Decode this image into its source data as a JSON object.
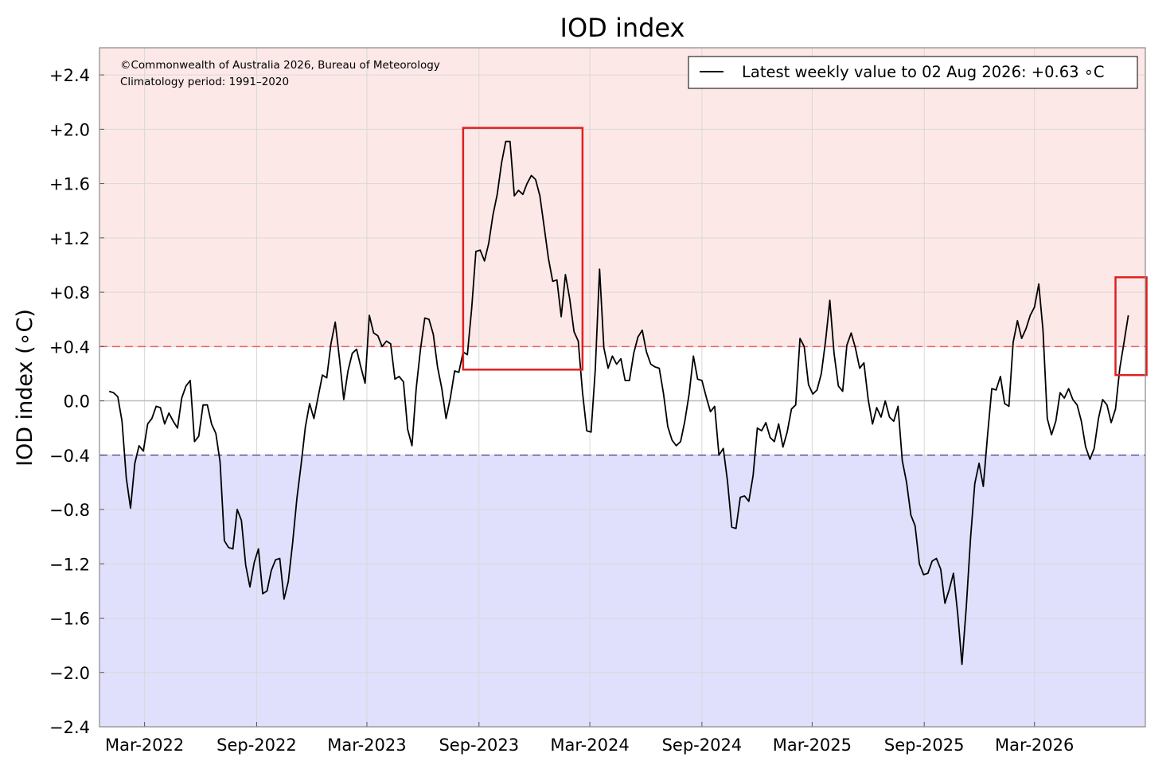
{
  "colors": {
    "positive_zone": "#fde8e8",
    "negative_zone": "#e0e0fd",
    "positive_threshold": "#f06060",
    "negative_threshold": "#5a5a9a",
    "line": "#000000",
    "highlight": "#e02020",
    "grid": "#d8d8d8",
    "zero_line": "#bbbbbb"
  },
  "chart_data": {
    "type": "line",
    "title": "IOD index",
    "ylabel": "IOD index (∘C)",
    "ylim": [
      -2.4,
      2.6
    ],
    "xlim": [
      "2021-12-17",
      "2026-08-30"
    ],
    "grid": true,
    "legend_position": "top-right",
    "copyright": "©Commonwealth of Australia 2026, Bureau of Meteorology",
    "climatology": "Climatology period: 1991–2020",
    "legend_label": "Latest weekly value to 02 Aug 2026: +0.63 ∘C",
    "thresholds": {
      "positive": 0.4,
      "negative": -0.4
    },
    "yticks": [
      {
        "value": 2.4,
        "label": "+2.4"
      },
      {
        "value": 2.0,
        "label": "+2.0"
      },
      {
        "value": 1.6,
        "label": "+1.6"
      },
      {
        "value": 1.2,
        "label": "+1.2"
      },
      {
        "value": 0.8,
        "label": "+0.8"
      },
      {
        "value": 0.4,
        "label": "+0.4"
      },
      {
        "value": 0.0,
        "label": "0.0"
      },
      {
        "value": -0.4,
        "label": "−0.4"
      },
      {
        "value": -0.8,
        "label": "−0.8"
      },
      {
        "value": -1.2,
        "label": "−1.2"
      },
      {
        "value": -1.6,
        "label": "−1.6"
      },
      {
        "value": -2.0,
        "label": "−2.0"
      },
      {
        "value": -2.4,
        "label": "−2.4"
      }
    ],
    "xticks": [
      {
        "date": "2022-03-01",
        "label": "Mar-2022"
      },
      {
        "date": "2022-09-01",
        "label": "Sep-2022"
      },
      {
        "date": "2023-03-01",
        "label": "Mar-2023"
      },
      {
        "date": "2023-09-01",
        "label": "Sep-2023"
      },
      {
        "date": "2024-03-01",
        "label": "Mar-2024"
      },
      {
        "date": "2024-09-01",
        "label": "Sep-2024"
      },
      {
        "date": "2025-03-01",
        "label": "Mar-2025"
      },
      {
        "date": "2025-09-01",
        "label": "Sep-2025"
      },
      {
        "date": "2026-03-01",
        "label": "Mar-2026"
      }
    ],
    "series": [
      {
        "points": [
          [
            "2022-01-02",
            0.07
          ],
          [
            "2022-01-09",
            0.06
          ],
          [
            "2022-01-16",
            0.03
          ],
          [
            "2022-01-23",
            -0.15
          ],
          [
            "2022-01-30",
            -0.57
          ],
          [
            "2022-02-06",
            -0.79
          ],
          [
            "2022-02-13",
            -0.46
          ],
          [
            "2022-02-20",
            -0.33
          ],
          [
            "2022-02-27",
            -0.37
          ],
          [
            "2022-03-06",
            -0.17
          ],
          [
            "2022-03-13",
            -0.13
          ],
          [
            "2022-03-20",
            -0.04
          ],
          [
            "2022-03-27",
            -0.05
          ],
          [
            "2022-04-03",
            -0.17
          ],
          [
            "2022-04-10",
            -0.09
          ],
          [
            "2022-04-17",
            -0.15
          ],
          [
            "2022-04-24",
            -0.2
          ],
          [
            "2022-05-01",
            0.02
          ],
          [
            "2022-05-08",
            0.11
          ],
          [
            "2022-05-15",
            0.15
          ],
          [
            "2022-05-22",
            -0.3
          ],
          [
            "2022-05-29",
            -0.26
          ],
          [
            "2022-06-05",
            -0.03
          ],
          [
            "2022-06-12",
            -0.03
          ],
          [
            "2022-06-19",
            -0.17
          ],
          [
            "2022-06-26",
            -0.24
          ],
          [
            "2022-07-03",
            -0.45
          ],
          [
            "2022-07-10",
            -1.03
          ],
          [
            "2022-07-17",
            -1.08
          ],
          [
            "2022-07-24",
            -1.09
          ],
          [
            "2022-07-31",
            -0.8
          ],
          [
            "2022-08-07",
            -0.88
          ],
          [
            "2022-08-14",
            -1.21
          ],
          [
            "2022-08-21",
            -1.37
          ],
          [
            "2022-08-28",
            -1.19
          ],
          [
            "2022-09-04",
            -1.09
          ],
          [
            "2022-09-11",
            -1.42
          ],
          [
            "2022-09-18",
            -1.4
          ],
          [
            "2022-09-25",
            -1.25
          ],
          [
            "2022-10-02",
            -1.17
          ],
          [
            "2022-10-09",
            -1.16
          ],
          [
            "2022-10-16",
            -1.46
          ],
          [
            "2022-10-23",
            -1.33
          ],
          [
            "2022-10-30",
            -1.05
          ],
          [
            "2022-11-06",
            -0.72
          ],
          [
            "2022-11-13",
            -0.47
          ],
          [
            "2022-11-20",
            -0.19
          ],
          [
            "2022-11-27",
            -0.02
          ],
          [
            "2022-12-04",
            -0.13
          ],
          [
            "2022-12-11",
            0.03
          ],
          [
            "2022-12-18",
            0.19
          ],
          [
            "2022-12-25",
            0.17
          ],
          [
            "2023-01-01",
            0.42
          ],
          [
            "2023-01-08",
            0.58
          ],
          [
            "2023-01-15",
            0.31
          ],
          [
            "2023-01-22",
            0.01
          ],
          [
            "2023-01-29",
            0.22
          ],
          [
            "2023-02-05",
            0.35
          ],
          [
            "2023-02-12",
            0.38
          ],
          [
            "2023-02-19",
            0.25
          ],
          [
            "2023-02-26",
            0.13
          ],
          [
            "2023-03-05",
            0.63
          ],
          [
            "2023-03-12",
            0.5
          ],
          [
            "2023-03-19",
            0.48
          ],
          [
            "2023-03-26",
            0.4
          ],
          [
            "2023-04-02",
            0.44
          ],
          [
            "2023-04-09",
            0.42
          ],
          [
            "2023-04-16",
            0.16
          ],
          [
            "2023-04-23",
            0.18
          ],
          [
            "2023-04-30",
            0.14
          ],
          [
            "2023-05-07",
            -0.21
          ],
          [
            "2023-05-14",
            -0.33
          ],
          [
            "2023-05-21",
            0.09
          ],
          [
            "2023-05-28",
            0.38
          ],
          [
            "2023-06-04",
            0.61
          ],
          [
            "2023-06-11",
            0.6
          ],
          [
            "2023-06-18",
            0.49
          ],
          [
            "2023-06-25",
            0.25
          ],
          [
            "2023-07-02",
            0.09
          ],
          [
            "2023-07-09",
            -0.13
          ],
          [
            "2023-07-16",
            0.02
          ],
          [
            "2023-07-23",
            0.22
          ],
          [
            "2023-07-30",
            0.21
          ],
          [
            "2023-08-06",
            0.36
          ],
          [
            "2023-08-13",
            0.34
          ],
          [
            "2023-08-20",
            0.68
          ],
          [
            "2023-08-27",
            1.1
          ],
          [
            "2023-09-03",
            1.11
          ],
          [
            "2023-09-10",
            1.03
          ],
          [
            "2023-09-17",
            1.16
          ],
          [
            "2023-09-24",
            1.37
          ],
          [
            "2023-10-01",
            1.52
          ],
          [
            "2023-10-08",
            1.75
          ],
          [
            "2023-10-15",
            1.91
          ],
          [
            "2023-10-22",
            1.91
          ],
          [
            "2023-10-29",
            1.51
          ],
          [
            "2023-11-05",
            1.55
          ],
          [
            "2023-11-12",
            1.52
          ],
          [
            "2023-11-19",
            1.6
          ],
          [
            "2023-11-26",
            1.66
          ],
          [
            "2023-12-03",
            1.63
          ],
          [
            "2023-12-10",
            1.51
          ],
          [
            "2023-12-17",
            1.28
          ],
          [
            "2023-12-24",
            1.05
          ],
          [
            "2023-12-31",
            0.88
          ],
          [
            "2024-01-07",
            0.89
          ],
          [
            "2024-01-14",
            0.62
          ],
          [
            "2024-01-21",
            0.93
          ],
          [
            "2024-01-28",
            0.75
          ],
          [
            "2024-02-04",
            0.51
          ],
          [
            "2024-02-11",
            0.44
          ],
          [
            "2024-02-18",
            0.06
          ],
          [
            "2024-02-25",
            -0.22
          ],
          [
            "2024-03-03",
            -0.23
          ],
          [
            "2024-03-10",
            0.23
          ],
          [
            "2024-03-17",
            0.97
          ],
          [
            "2024-03-24",
            0.39
          ],
          [
            "2024-03-31",
            0.24
          ],
          [
            "2024-04-07",
            0.33
          ],
          [
            "2024-04-14",
            0.27
          ],
          [
            "2024-04-21",
            0.31
          ],
          [
            "2024-04-28",
            0.15
          ],
          [
            "2024-05-05",
            0.15
          ],
          [
            "2024-05-12",
            0.35
          ],
          [
            "2024-05-19",
            0.47
          ],
          [
            "2024-05-26",
            0.52
          ],
          [
            "2024-06-02",
            0.36
          ],
          [
            "2024-06-09",
            0.27
          ],
          [
            "2024-06-16",
            0.25
          ],
          [
            "2024-06-23",
            0.24
          ],
          [
            "2024-06-30",
            0.05
          ],
          [
            "2024-07-07",
            -0.19
          ],
          [
            "2024-07-14",
            -0.29
          ],
          [
            "2024-07-21",
            -0.33
          ],
          [
            "2024-07-28",
            -0.3
          ],
          [
            "2024-08-04",
            -0.15
          ],
          [
            "2024-08-11",
            0.05
          ],
          [
            "2024-08-18",
            0.33
          ],
          [
            "2024-08-25",
            0.16
          ],
          [
            "2024-09-01",
            0.15
          ],
          [
            "2024-09-08",
            0.03
          ],
          [
            "2024-09-15",
            -0.08
          ],
          [
            "2024-09-22",
            -0.04
          ],
          [
            "2024-09-29",
            -0.4
          ],
          [
            "2024-10-06",
            -0.35
          ],
          [
            "2024-10-13",
            -0.59
          ],
          [
            "2024-10-20",
            -0.93
          ],
          [
            "2024-10-27",
            -0.94
          ],
          [
            "2024-11-03",
            -0.71
          ],
          [
            "2024-11-10",
            -0.7
          ],
          [
            "2024-11-17",
            -0.74
          ],
          [
            "2024-11-24",
            -0.55
          ],
          [
            "2024-12-01",
            -0.2
          ],
          [
            "2024-12-08",
            -0.22
          ],
          [
            "2024-12-15",
            -0.16
          ],
          [
            "2024-12-22",
            -0.27
          ],
          [
            "2024-12-29",
            -0.3
          ],
          [
            "2025-01-05",
            -0.17
          ],
          [
            "2025-01-12",
            -0.34
          ],
          [
            "2025-01-19",
            -0.23
          ],
          [
            "2025-01-26",
            -0.06
          ],
          [
            "2025-02-02",
            -0.03
          ],
          [
            "2025-02-09",
            0.46
          ],
          [
            "2025-02-16",
            0.4
          ],
          [
            "2025-02-23",
            0.12
          ],
          [
            "2025-03-02",
            0.05
          ],
          [
            "2025-03-09",
            0.08
          ],
          [
            "2025-03-16",
            0.2
          ],
          [
            "2025-03-23",
            0.44
          ],
          [
            "2025-03-30",
            0.74
          ],
          [
            "2025-04-06",
            0.35
          ],
          [
            "2025-04-13",
            0.11
          ],
          [
            "2025-04-20",
            0.07
          ],
          [
            "2025-04-27",
            0.41
          ],
          [
            "2025-05-04",
            0.5
          ],
          [
            "2025-05-11",
            0.39
          ],
          [
            "2025-05-18",
            0.24
          ],
          [
            "2025-05-25",
            0.28
          ],
          [
            "2025-06-01",
            0.01
          ],
          [
            "2025-06-08",
            -0.17
          ],
          [
            "2025-06-15",
            -0.05
          ],
          [
            "2025-06-22",
            -0.12
          ],
          [
            "2025-06-29",
            0.0
          ],
          [
            "2025-07-06",
            -0.12
          ],
          [
            "2025-07-13",
            -0.15
          ],
          [
            "2025-07-20",
            -0.04
          ],
          [
            "2025-07-27",
            -0.44
          ],
          [
            "2025-08-03",
            -0.6
          ],
          [
            "2025-08-10",
            -0.84
          ],
          [
            "2025-08-17",
            -0.92
          ],
          [
            "2025-08-24",
            -1.2
          ],
          [
            "2025-08-31",
            -1.28
          ],
          [
            "2025-09-07",
            -1.27
          ],
          [
            "2025-09-14",
            -1.18
          ],
          [
            "2025-09-21",
            -1.16
          ],
          [
            "2025-09-28",
            -1.24
          ],
          [
            "2025-10-05",
            -1.49
          ],
          [
            "2025-10-12",
            -1.39
          ],
          [
            "2025-10-19",
            -1.27
          ],
          [
            "2025-10-26",
            -1.57
          ],
          [
            "2025-11-02",
            -1.94
          ],
          [
            "2025-11-09",
            -1.52
          ],
          [
            "2025-11-16",
            -1.01
          ],
          [
            "2025-11-23",
            -0.61
          ],
          [
            "2025-11-30",
            -0.46
          ],
          [
            "2025-12-07",
            -0.63
          ],
          [
            "2025-12-14",
            -0.25
          ],
          [
            "2025-12-21",
            0.09
          ],
          [
            "2025-12-28",
            0.08
          ],
          [
            "2026-01-04",
            0.18
          ],
          [
            "2026-01-11",
            -0.02
          ],
          [
            "2026-01-18",
            -0.04
          ],
          [
            "2026-01-25",
            0.43
          ],
          [
            "2026-02-01",
            0.59
          ],
          [
            "2026-02-08",
            0.46
          ],
          [
            "2026-02-15",
            0.53
          ],
          [
            "2026-02-22",
            0.63
          ],
          [
            "2026-03-01",
            0.69
          ],
          [
            "2026-03-08",
            0.86
          ],
          [
            "2026-03-15",
            0.52
          ],
          [
            "2026-03-22",
            -0.13
          ],
          [
            "2026-03-29",
            -0.25
          ],
          [
            "2026-04-05",
            -0.15
          ],
          [
            "2026-04-12",
            0.06
          ],
          [
            "2026-04-19",
            0.02
          ],
          [
            "2026-04-26",
            0.09
          ],
          [
            "2026-05-03",
            0.01
          ],
          [
            "2026-05-10",
            -0.03
          ],
          [
            "2026-05-17",
            -0.15
          ],
          [
            "2026-05-24",
            -0.34
          ],
          [
            "2026-05-31",
            -0.43
          ],
          [
            "2026-06-07",
            -0.35
          ],
          [
            "2026-06-14",
            -0.13
          ],
          [
            "2026-06-21",
            0.01
          ],
          [
            "2026-06-28",
            -0.03
          ],
          [
            "2026-07-05",
            -0.16
          ],
          [
            "2026-07-12",
            -0.06
          ],
          [
            "2026-07-19",
            0.24
          ],
          [
            "2026-07-26",
            0.43
          ],
          [
            "2026-08-02",
            0.63
          ]
        ]
      }
    ],
    "highlights": [
      {
        "x0": "2023-08-06",
        "x1": "2024-02-18",
        "y0": 0.23,
        "y1": 2.01
      },
      {
        "x0": "2026-07-12",
        "x1": "2026-09-01",
        "y0": 0.19,
        "y1": 0.91
      }
    ]
  }
}
